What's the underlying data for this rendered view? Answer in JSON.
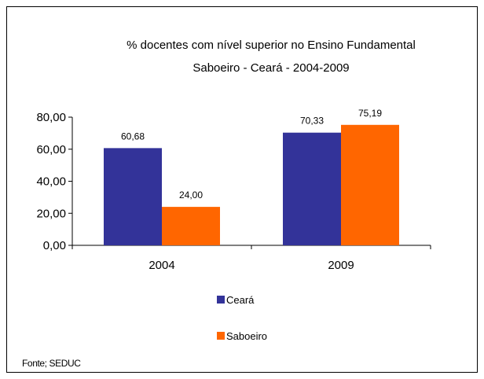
{
  "chart_data": {
    "type": "bar",
    "title": "% docentes com nível  superior no Ensino Fundamental",
    "subtitle": "Saboeiro  -  Ceará - 2004-2009",
    "categories": [
      "2004",
      "2009"
    ],
    "series": [
      {
        "name": "Ceará",
        "values": [
          60.68,
          70.33
        ],
        "labels": [
          "60,68",
          "70,33"
        ],
        "color": "#333399"
      },
      {
        "name": "Saboeiro",
        "values": [
          24.0,
          75.19
        ],
        "labels": [
          "24,00",
          "75,19"
        ],
        "color": "#FF6600"
      }
    ],
    "ylim": [
      0,
      80
    ],
    "yticks": [
      0,
      20,
      40,
      60,
      80
    ],
    "ytick_labels": [
      "0,00",
      "20,00",
      "40,00",
      "60,00",
      "80,00"
    ],
    "xlabel": "",
    "ylabel": "",
    "grid": false,
    "legend_position": "bottom"
  },
  "source": "Fonte; SEDUC"
}
